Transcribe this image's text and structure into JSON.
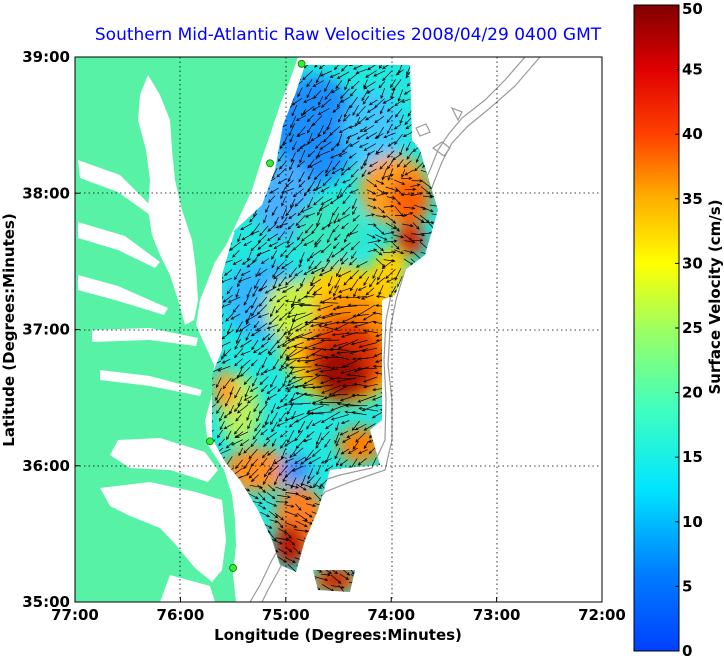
{
  "title": "Southern Mid-Atlantic Raw Velocities 2008/04/29 0400 GMT",
  "xlabel": "Longitude (Degrees:Minutes)",
  "ylabel": "Latitude (Degrees:Minutes)",
  "colorbar_label": "Surface Velocity (cm/s)",
  "colors": {
    "land": "#57f2a6",
    "title": "#0000ff",
    "bathymetry": "#9a9a9a",
    "station_marker": "#33ee33"
  },
  "axes": {
    "x_ticks": [
      "77:00",
      "76:00",
      "75:00",
      "74:00",
      "73:00",
      "72:00"
    ],
    "y_ticks": [
      "39:00",
      "38:00",
      "37:00",
      "36:00",
      "35:00"
    ],
    "lon_range": [
      -77,
      -72
    ],
    "lat_range": [
      35,
      39
    ],
    "grid": "dotted"
  },
  "colorbar": {
    "ticks": [
      "0",
      "5",
      "10",
      "15",
      "20",
      "25",
      "30",
      "35",
      "40",
      "45",
      "50"
    ],
    "range": [
      0,
      50
    ],
    "colormap": "jet"
  },
  "stations": [
    {
      "lon": -74.85,
      "lat": 38.95
    },
    {
      "lon": -75.15,
      "lat": 38.22
    },
    {
      "lon": -75.72,
      "lat": 36.18
    },
    {
      "lon": -75.5,
      "lat": 35.25
    }
  ],
  "velocity_regions": [
    {
      "name": "northern-blue-lobe",
      "lon": -74.7,
      "lat": 38.4,
      "speed": 8
    },
    {
      "name": "delmarva-shelf-cyan",
      "lon": -74.75,
      "lat": 37.6,
      "speed": 12
    },
    {
      "name": "central-orange-core",
      "lon": -74.4,
      "lat": 36.7,
      "speed": 45
    },
    {
      "name": "northeast-orange",
      "lon": -74.1,
      "lat": 37.95,
      "speed": 33
    },
    {
      "name": "hatteras-jet",
      "lon": -74.85,
      "lat": 35.55,
      "speed": 38
    },
    {
      "name": "southern-patch",
      "lon": -74.45,
      "lat": 35.1,
      "speed": 40
    }
  ]
}
